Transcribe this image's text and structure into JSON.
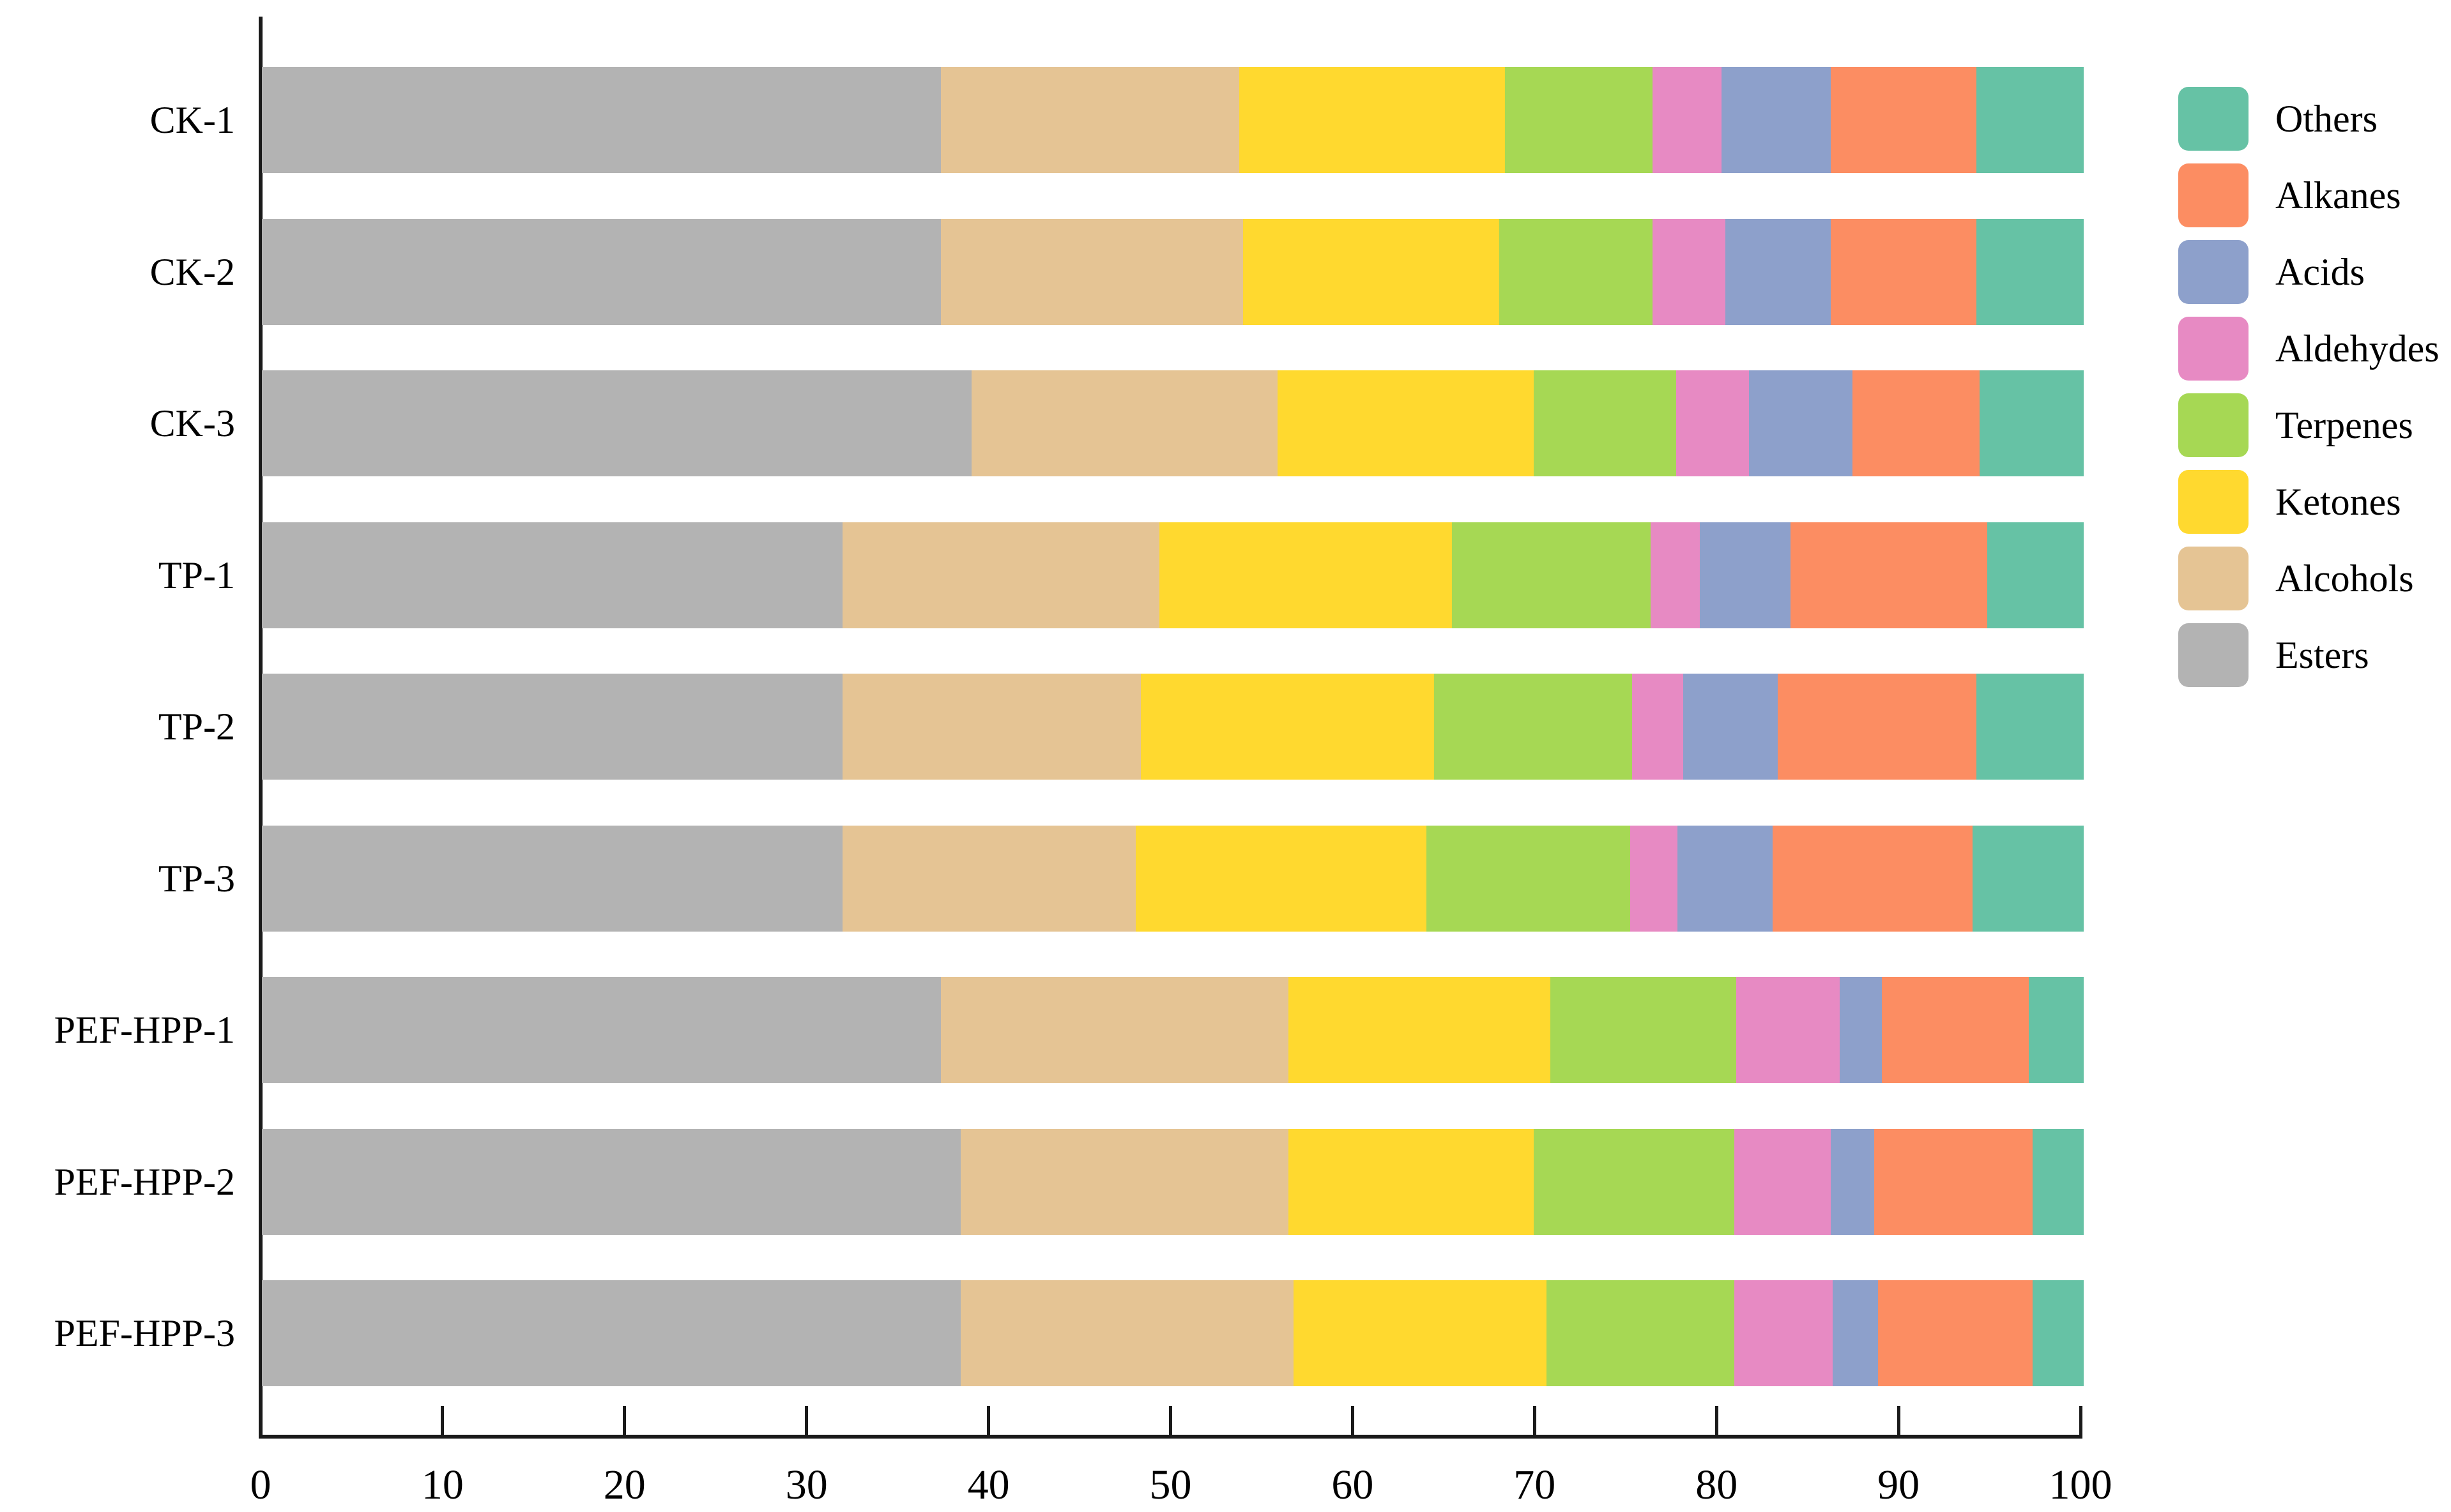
{
  "chart_data": {
    "type": "bar",
    "orientation": "horizontal",
    "title": "",
    "xlabel": "",
    "ylabel": "",
    "xlim": [
      0,
      100
    ],
    "x_ticks": [
      0,
      10,
      20,
      30,
      40,
      50,
      60,
      70,
      80,
      90,
      100
    ],
    "grid": false,
    "legend_position": "right",
    "categories": [
      "CK-1",
      "CK-2",
      "CK-3",
      "TP-1",
      "TP-2",
      "TP-3",
      "PEF-HPP-1",
      "PEF-HPP-2",
      "PEF-HPP-3"
    ],
    "stack_order": [
      "Esters",
      "Alcohols",
      "Ketones",
      "Terpenes",
      "Aldehydes",
      "Acids",
      "Alkanes",
      "Others"
    ],
    "series": [
      {
        "name": "Esters",
        "color": "#B3B3B3",
        "values": [
          37.3,
          37.3,
          39.0,
          31.9,
          31.9,
          31.9,
          37.3,
          38.4,
          38.4
        ]
      },
      {
        "name": "Alcohols",
        "color": "#E5C494",
        "values": [
          16.4,
          16.6,
          16.8,
          17.4,
          16.4,
          16.1,
          19.1,
          18.0,
          18.3
        ]
      },
      {
        "name": "Ketones",
        "color": "#FFD92F",
        "values": [
          14.6,
          14.1,
          14.1,
          16.1,
          16.1,
          16.0,
          14.4,
          13.5,
          13.9
        ]
      },
      {
        "name": "Terpenes",
        "color": "#A6D854",
        "values": [
          8.1,
          8.4,
          7.8,
          10.9,
          10.9,
          11.2,
          10.2,
          11.0,
          10.3
        ]
      },
      {
        "name": "Aldehydes",
        "color": "#E78AC3",
        "values": [
          3.8,
          4.0,
          4.0,
          2.7,
          2.8,
          2.6,
          5.7,
          5.3,
          5.4
        ]
      },
      {
        "name": "Acids",
        "color": "#8DA0CB",
        "values": [
          6.0,
          5.8,
          5.7,
          5.0,
          5.2,
          5.2,
          2.3,
          2.4,
          2.5
        ]
      },
      {
        "name": "Alkanes",
        "color": "#FC8D62",
        "values": [
          8.0,
          8.0,
          7.0,
          10.8,
          10.9,
          11.0,
          8.1,
          8.7,
          8.5
        ]
      },
      {
        "name": "Others",
        "color": "#66C2A5",
        "values": [
          5.9,
          5.9,
          5.7,
          5.3,
          5.9,
          6.1,
          3.0,
          2.8,
          2.8
        ]
      }
    ],
    "legend": [
      "Others",
      "Alkanes",
      "Acids",
      "Aldehydes",
      "Terpenes",
      "Ketones",
      "Alcohols",
      "Esters"
    ],
    "axis_color": "#1a1a1a"
  }
}
